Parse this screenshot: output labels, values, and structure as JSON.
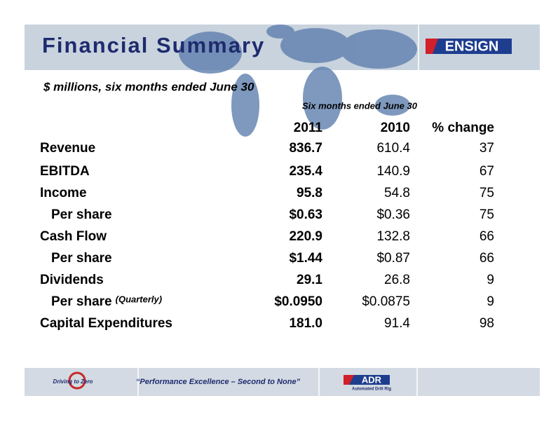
{
  "header": {
    "title": "Financial Summary",
    "logo": "ENSIGN"
  },
  "subtitle": "$ millions, six months ended June 30",
  "table": {
    "group_header": "Six months ended June 30",
    "columns": [
      "2011",
      "2010",
      "% change"
    ],
    "rows": [
      {
        "label": "Revenue",
        "values": [
          "836.7",
          "610.4",
          "37"
        ]
      },
      {
        "label": "EBITDA",
        "values": [
          "235.4",
          "140.9",
          "67"
        ]
      },
      {
        "label": "Income",
        "values": [
          "95.8",
          "54.8",
          "75"
        ]
      },
      {
        "label": "Per share",
        "indent": true,
        "values": [
          "$0.63",
          "$0.36",
          "75"
        ]
      },
      {
        "label": "Cash Flow",
        "values": [
          "220.9",
          "132.8",
          "66"
        ]
      },
      {
        "label": "Per share",
        "indent": true,
        "values": [
          "$1.44",
          "$0.87",
          "66"
        ]
      },
      {
        "label": "Dividends",
        "values": [
          "29.1",
          "26.8",
          "9"
        ]
      },
      {
        "label": "Per share",
        "indent": true,
        "note": "(Quarterly)",
        "values": [
          "$0.0950",
          "$0.0875",
          "9"
        ]
      },
      {
        "label": "Capital Expenditures",
        "values": [
          "181.0",
          "91.4",
          "98"
        ]
      }
    ]
  },
  "footer": {
    "left_logo": "Driving to Zero",
    "tagline": "“Performance Excellence – Second to None”",
    "right_logo": "ADR",
    "right_logo_sub": "Automated Drill Rig"
  }
}
